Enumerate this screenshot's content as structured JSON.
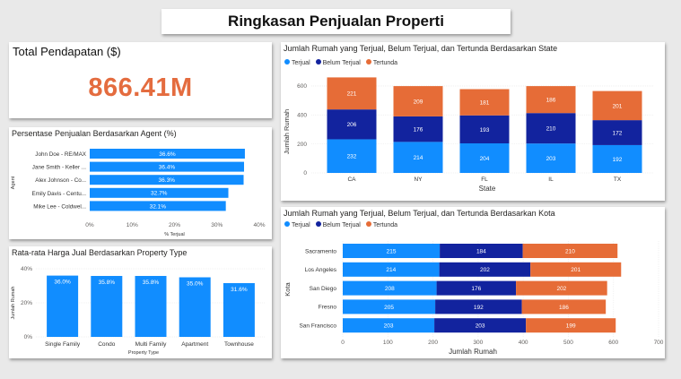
{
  "header": {
    "title": "Ringkasan Penjualan Properti"
  },
  "kpi": {
    "label": "Total Pendapatan ($)",
    "value": "866.41M"
  },
  "colors": {
    "light_blue": "#118dff",
    "dark_blue": "#12239e",
    "orange": "#e66c37",
    "accent": "#e46c3f"
  },
  "agent_chart": {
    "title": "Persentase Penjualan Berdasarkan Agent (%)",
    "chart_data": {
      "type": "bar",
      "orientation": "horizontal",
      "categories": [
        "John Doe - RE/MAX",
        "Jane Smith - Keller ...",
        "Alex Johnson - Co...",
        "Emily Davis - Centu...",
        "Mike Lee - Coldwel..."
      ],
      "values": [
        36.6,
        36.4,
        36.3,
        32.7,
        32.1
      ],
      "labels": [
        "36.6%",
        "36.4%",
        "36.3%",
        "32.7%",
        "32.1%"
      ],
      "xticks": [
        "0%",
        "10%",
        "20%",
        "30%",
        "40%"
      ],
      "xlim": [
        0,
        40
      ],
      "xlabel": "% Terjual",
      "ylabel": "Agent"
    }
  },
  "ptype_chart": {
    "title": "Rata-rata Harga Jual Berdasarkan Property Type",
    "chart_data": {
      "type": "bar",
      "categories": [
        "Single Family",
        "Condo",
        "Multi Family",
        "Apartment",
        "Townhouse"
      ],
      "values": [
        36.0,
        35.8,
        35.8,
        35.0,
        31.6
      ],
      "labels": [
        "36.0%",
        "35.8%",
        "35.8%",
        "35.0%",
        "31.6%"
      ],
      "yticks": [
        "0%",
        "20%",
        "40%"
      ],
      "ylim": [
        0,
        40
      ],
      "xlabel": "Property Type",
      "ylabel": "Jumlah Rumah"
    }
  },
  "state_chart": {
    "title": "Jumlah Rumah yang Terjual, Belum Terjual, dan Tertunda Berdasarkan State",
    "legend": [
      "Terjual",
      "Belum Terjual",
      "Tertunda"
    ],
    "chart_data": {
      "type": "bar",
      "stacked": true,
      "categories": [
        "CA",
        "NY",
        "FL",
        "IL",
        "TX"
      ],
      "series": [
        {
          "name": "Terjual",
          "values": [
            232,
            214,
            204,
            203,
            192
          ]
        },
        {
          "name": "Belum Terjual",
          "values": [
            206,
            176,
            193,
            210,
            172
          ]
        },
        {
          "name": "Tertunda",
          "values": [
            221,
            209,
            181,
            186,
            201
          ]
        }
      ],
      "yticks": [
        "0",
        "200",
        "400",
        "600"
      ],
      "ylim": [
        0,
        680
      ],
      "xlabel": "State",
      "ylabel": "Jumlah Rumah"
    }
  },
  "city_chart": {
    "title": "Jumlah Rumah yang Terjual, Belum Terjual, dan Tertunda Berdasarkan Kota",
    "legend": [
      "Terjual",
      "Belum Terjual",
      "Tertunda"
    ],
    "chart_data": {
      "type": "bar",
      "orientation": "horizontal",
      "stacked": true,
      "categories": [
        "Sacramento",
        "Los Angeles",
        "San Diego",
        "Fresno",
        "San Francisco"
      ],
      "series": [
        {
          "name": "Terjual",
          "values": [
            215,
            214,
            208,
            205,
            203
          ]
        },
        {
          "name": "Belum Terjual",
          "values": [
            184,
            202,
            176,
            192,
            203
          ]
        },
        {
          "name": "Tertunda",
          "values": [
            210,
            201,
            202,
            186,
            199
          ]
        }
      ],
      "xticks": [
        "0",
        "100",
        "200",
        "300",
        "400",
        "500",
        "600",
        "700"
      ],
      "xlim": [
        0,
        700
      ],
      "xlabel": "Jumlah Rumah",
      "ylabel": "Kota"
    }
  }
}
